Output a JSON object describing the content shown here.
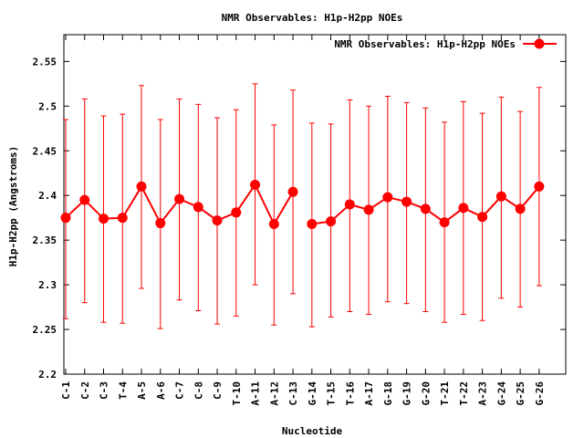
{
  "chart_data": {
    "type": "line",
    "title": "NMR Observables: H1p-H2pp NOEs",
    "xlabel": "Nucleotide",
    "ylabel": "H1p-H2pp (Angstroms)",
    "ylim": [
      2.2,
      2.58
    ],
    "yticks": [
      2.2,
      2.25,
      2.3,
      2.35,
      2.4,
      2.45,
      2.5,
      2.55
    ],
    "ytick_labels": [
      "2.2",
      "2.25",
      "2.3",
      "2.35",
      "2.4",
      "2.45",
      "2.5",
      "2.55"
    ],
    "xlim": [
      0,
      27
    ],
    "grid": false,
    "legend_position": "top-right",
    "series": [
      {
        "name": "NMR Observables: H1p-H2pp NOEs",
        "color": "#ff0000",
        "segments": [
          {
            "x": [
              1,
              2,
              3,
              4,
              5,
              6,
              7,
              8,
              9,
              10,
              11,
              12,
              13
            ],
            "categories": [
              "C-1",
              "C-2",
              "C-3",
              "T-4",
              "A-5",
              "A-6",
              "C-7",
              "C-8",
              "C-9",
              "T-10",
              "A-11",
              "A-12",
              "C-13"
            ],
            "values": [
              2.375,
              2.395,
              2.374,
              2.375,
              2.41,
              2.369,
              2.396,
              2.387,
              2.372,
              2.381,
              2.412,
              2.368,
              2.404
            ],
            "err_low": [
              2.262,
              2.28,
              2.258,
              2.257,
              2.296,
              2.251,
              2.283,
              2.271,
              2.256,
              2.265,
              2.3,
              2.255,
              2.29
            ],
            "err_high": [
              2.485,
              2.508,
              2.489,
              2.491,
              2.523,
              2.485,
              2.508,
              2.502,
              2.487,
              2.496,
              2.525,
              2.479,
              2.518
            ]
          },
          {
            "x": [
              14,
              15,
              16,
              17,
              18,
              19,
              20,
              21,
              22,
              23,
              24,
              25,
              26
            ],
            "categories": [
              "G-14",
              "T-15",
              "T-16",
              "A-17",
              "G-18",
              "G-19",
              "G-20",
              "T-21",
              "T-22",
              "A-23",
              "G-24",
              "G-25",
              "G-26"
            ],
            "values": [
              2.368,
              2.371,
              2.39,
              2.384,
              2.398,
              2.393,
              2.385,
              2.37,
              2.386,
              2.376,
              2.399,
              2.385,
              2.41
            ],
            "err_low": [
              2.253,
              2.264,
              2.27,
              2.267,
              2.281,
              2.279,
              2.27,
              2.258,
              2.267,
              2.26,
              2.285,
              2.275,
              2.299
            ],
            "err_high": [
              2.481,
              2.48,
              2.507,
              2.5,
              2.511,
              2.504,
              2.498,
              2.482,
              2.505,
              2.492,
              2.51,
              2.494,
              2.521
            ]
          }
        ]
      }
    ]
  }
}
